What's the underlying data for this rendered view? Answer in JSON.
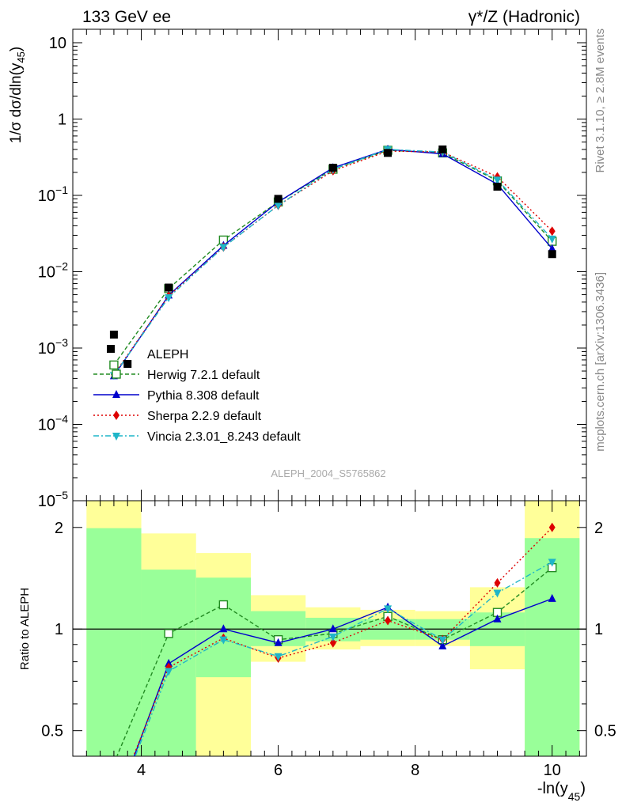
{
  "header": {
    "left": "133 GeV ee",
    "right": "γ*/Z (Hadronic)"
  },
  "side_labels": {
    "rivet": "Rivet 3.1.10, ≥ 2.8M events",
    "mcplots": "mcplots.cern.ch [arXiv:1306.3436]"
  },
  "watermark": "ALEPH_2004_S5765862",
  "chart_data": [
    {
      "type": "scatter",
      "panel": "main",
      "ylabel": "1/σ dσ/dln(y45)",
      "yscale": "log",
      "ylim": [
        1e-05,
        15
      ],
      "xlim": [
        3.0,
        10.5
      ],
      "yticks": [
        {
          "value": 10,
          "label": "10"
        },
        {
          "value": 1,
          "label": "1"
        },
        {
          "value": 0.1,
          "label": "10",
          "exp": "−1"
        },
        {
          "value": 0.01,
          "label": "10",
          "exp": "−2"
        },
        {
          "value": 0.001,
          "label": "10",
          "exp": "−3"
        },
        {
          "value": 0.0001,
          "label": "10",
          "exp": "−4"
        },
        {
          "value": 1e-05,
          "label": "10",
          "exp": "−5"
        }
      ],
      "data": {
        "name": "ALEPH",
        "x": [
          3.6,
          3.8,
          4.4,
          6.0,
          6.8,
          7.6,
          8.4,
          9.2,
          10.0
        ],
        "y": [
          0.0015,
          0.00062,
          0.0062,
          0.09,
          0.23,
          0.36,
          0.4,
          0.13,
          0.017
        ]
      },
      "series": [
        {
          "name": "Herwig 7.2.1 default",
          "color": "#228b22",
          "dash": "5,3",
          "marker": "open-square",
          "x": [
            3.6,
            4.4,
            5.2,
            6.0,
            6.8,
            7.6,
            8.4,
            9.2,
            10.0
          ],
          "y": [
            0.0006,
            0.006,
            0.026,
            0.082,
            0.22,
            0.39,
            0.36,
            0.155,
            0.025
          ]
        },
        {
          "name": "Pythia 8.308 default",
          "color": "#0000cc",
          "dash": "",
          "marker": "triangle-up",
          "x": [
            3.6,
            4.4,
            5.2,
            6.0,
            6.8,
            7.6,
            8.4,
            9.2,
            10.0
          ],
          "y": [
            0.00043,
            0.0049,
            0.022,
            0.082,
            0.23,
            0.4,
            0.35,
            0.14,
            0.02
          ]
        },
        {
          "name": "Sherpa 2.2.9 default",
          "color": "#dd0000",
          "dash": "2,3",
          "marker": "diamond",
          "x": [
            3.6,
            4.4,
            5.2,
            6.0,
            6.8,
            7.6,
            8.4,
            9.2,
            10.0
          ],
          "y": [
            0.00045,
            0.0048,
            0.021,
            0.074,
            0.21,
            0.38,
            0.37,
            0.175,
            0.034
          ]
        },
        {
          "name": "Vincia 2.3.01_8.243 default",
          "color": "#1fb5c8",
          "dash": "7,3,2,3",
          "marker": "triangle-down",
          "x": [
            3.6,
            4.4,
            5.2,
            6.0,
            6.8,
            7.6,
            8.4,
            9.2,
            10.0
          ],
          "y": [
            0.00044,
            0.0046,
            0.021,
            0.074,
            0.22,
            0.4,
            0.37,
            0.16,
            0.027
          ]
        }
      ]
    },
    {
      "type": "line",
      "panel": "ratio",
      "ylabel": "Ratio to ALEPH",
      "xlabel": "-ln(y45)",
      "yscale": "log",
      "ylim": [
        0.42,
        2.4
      ],
      "xlim": [
        3.0,
        10.5
      ],
      "xticks": [
        4,
        6,
        8,
        10
      ],
      "yticks": [
        0.5,
        1,
        2
      ],
      "reference": 1,
      "bands": [
        {
          "x0": 3.2,
          "x1": 4.0,
          "green": [
            0.3,
            1.99
          ],
          "yellow": [
            0.3,
            2.5
          ]
        },
        {
          "x0": 4.0,
          "x1": 4.8,
          "green": [
            0.3,
            1.5
          ],
          "yellow": [
            0.3,
            1.92
          ]
        },
        {
          "x0": 4.8,
          "x1": 5.6,
          "green": [
            0.72,
            1.42
          ],
          "yellow": [
            0.3,
            1.68
          ]
        },
        {
          "x0": 5.6,
          "x1": 6.4,
          "green": [
            0.89,
            1.13
          ],
          "yellow": [
            0.8,
            1.26
          ]
        },
        {
          "x0": 6.4,
          "x1": 7.2,
          "green": [
            0.92,
            1.08
          ],
          "yellow": [
            0.87,
            1.16
          ]
        },
        {
          "x0": 7.2,
          "x1": 8.0,
          "green": [
            0.93,
            1.07
          ],
          "yellow": [
            0.89,
            1.14
          ]
        },
        {
          "x0": 8.0,
          "x1": 8.8,
          "green": [
            0.93,
            1.07
          ],
          "yellow": [
            0.89,
            1.13
          ]
        },
        {
          "x0": 8.8,
          "x1": 9.6,
          "green": [
            0.89,
            1.12
          ],
          "yellow": [
            0.76,
            1.33
          ]
        },
        {
          "x0": 9.6,
          "x1": 10.4,
          "green": [
            0.3,
            1.86
          ],
          "yellow": [
            0.3,
            2.5
          ]
        }
      ],
      "series": [
        {
          "name": "Herwig 7.2.1 default",
          "x": [
            3.6,
            4.4,
            5.2,
            6.0,
            6.8,
            7.6,
            8.4,
            9.2,
            10.0
          ],
          "y": [
            0.4,
            0.97,
            1.18,
            0.93,
            0.97,
            1.09,
            0.93,
            1.12,
            1.52
          ]
        },
        {
          "name": "Pythia 8.308 default",
          "x": [
            3.6,
            4.4,
            5.2,
            6.0,
            6.8,
            7.6,
            8.4,
            9.2,
            10.0
          ],
          "y": [
            0.29,
            0.79,
            1.0,
            0.91,
            1.0,
            1.16,
            0.89,
            1.07,
            1.23
          ]
        },
        {
          "name": "Sherpa 2.2.9 default",
          "x": [
            3.6,
            4.4,
            5.2,
            6.0,
            6.8,
            7.6,
            8.4,
            9.2,
            10.0
          ],
          "y": [
            0.3,
            0.77,
            0.94,
            0.82,
            0.91,
            1.06,
            0.93,
            1.37,
            2.0
          ]
        },
        {
          "name": "Vincia 2.3.01_8.243 default",
          "x": [
            3.6,
            4.4,
            5.2,
            6.0,
            6.8,
            7.6,
            8.4,
            9.2,
            10.0
          ],
          "y": [
            0.29,
            0.75,
            0.93,
            0.83,
            0.95,
            1.15,
            0.93,
            1.28,
            1.58
          ]
        }
      ]
    }
  ]
}
